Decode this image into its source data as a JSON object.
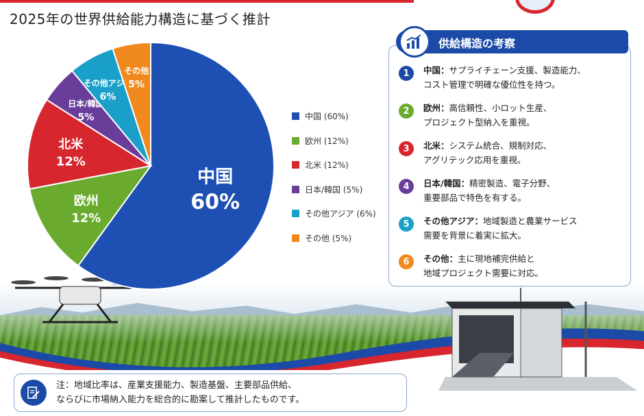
{
  "title": "2025年の世界供給能力構造に基づく推計",
  "chart_data": {
    "type": "pie",
    "categories": [
      "中国",
      "欧州",
      "北米",
      "日本/韓国",
      "その他アジア",
      "その他"
    ],
    "values": [
      60,
      12,
      12,
      5,
      6,
      5
    ],
    "colors": [
      "#1e50b4",
      "#6aaa2e",
      "#d7262e",
      "#6a3d9a",
      "#1aa0c8",
      "#f18a1e"
    ],
    "slice_labels": [
      "中国",
      "欧州",
      "北米",
      "日本/韓国",
      "その他アジア",
      "その他"
    ],
    "slice_percents": [
      "60%",
      "12%",
      "12%",
      "5%",
      "6%",
      "5%"
    ],
    "legend": [
      "中国 (60%)",
      "欧州 (12%)",
      "北米 (12%)",
      "日本/韓国 (5%)",
      "その他アジア (6%)",
      "その他 (5%)"
    ],
    "legend_position": "right"
  },
  "panel": {
    "title": "供給構造の考察",
    "icon": "bar-chart-icon",
    "items": [
      {
        "num": "1",
        "color": "#1b4aa8",
        "name": "中国：",
        "line1": "サプライチェーン支援、製造能力、",
        "line2": "コスト管理で明確な優位性を持つ。"
      },
      {
        "num": "2",
        "color": "#6aaa2e",
        "name": "欧州：",
        "line1": "高信頼性、小ロット生産、",
        "line2": "プロジェクト型納入を重視。"
      },
      {
        "num": "3",
        "color": "#d7262e",
        "name": "北米：",
        "line1": "システム統合、規制対応、",
        "line2": "アグリテック応用を重視。"
      },
      {
        "num": "4",
        "color": "#6a3d9a",
        "name": "日本/韓国：",
        "line1": "精密製造、電子分野、",
        "line2": "重要部品で特色を有する。"
      },
      {
        "num": "5",
        "color": "#1aa0c8",
        "name": "その他アジア：",
        "line1": "地域製造と農業サービス",
        "line2": "需要を背景に着実に拡大。"
      },
      {
        "num": "6",
        "color": "#f18a1e",
        "name": "その他：",
        "line1": "主に現地補完供給と",
        "line2": "地域プロジェクト需要に対応。"
      }
    ]
  },
  "note": {
    "icon": "note-edit-icon",
    "line1": "注：地域比率は、産業支援能力、製造基盤、主要部品供給、",
    "line2": "ならびに市場納入能力を総合的に勘案して推計したものです。"
  }
}
